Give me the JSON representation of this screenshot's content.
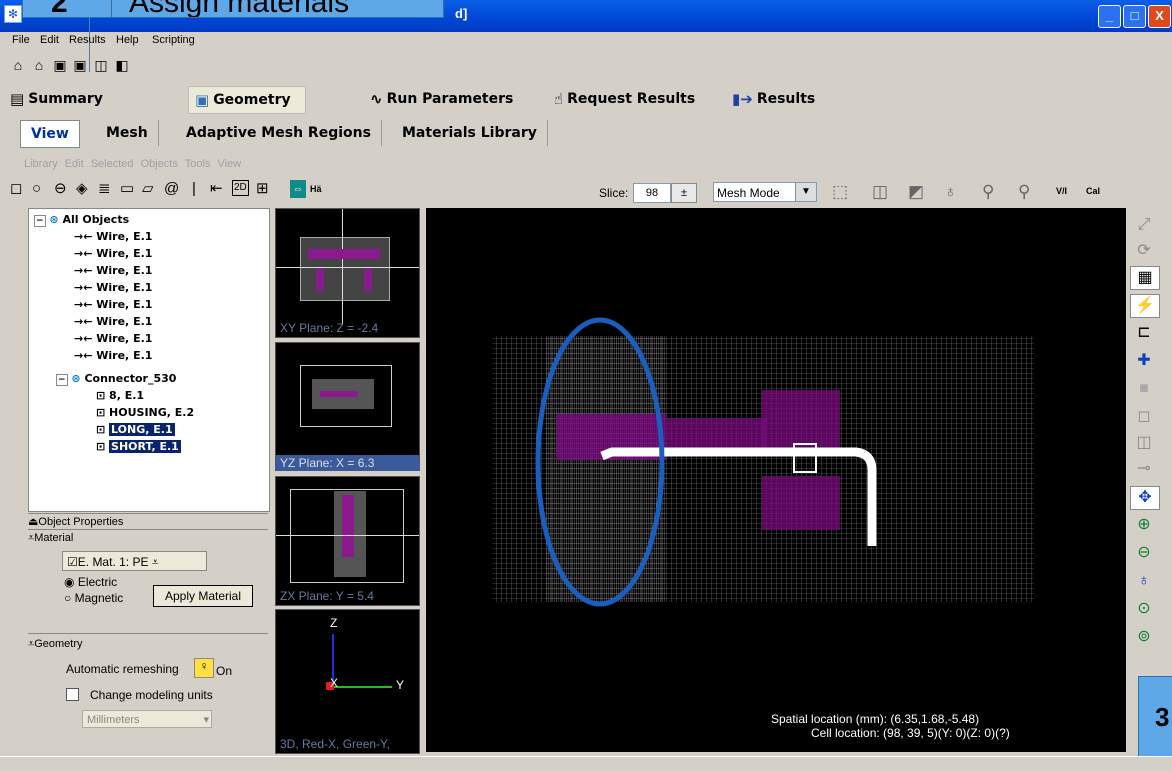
{
  "window": {
    "title": "d]",
    "callout_step": "2",
    "callout_text": "Assign materials",
    "callout_step_right": "3",
    "buttons": {
      "minimize": "_",
      "maximize": "□",
      "close": "X"
    }
  },
  "menu": [
    "File",
    "Edit",
    "Results",
    "Help",
    "Scripting"
  ],
  "main_tabs": [
    {
      "label": "Summary",
      "icon": "summary-icon"
    },
    {
      "label": "Geometry",
      "icon": "geometry-icon"
    },
    {
      "label": "Run Parameters",
      "icon": "run-parameters-icon"
    },
    {
      "label": "Request Results",
      "icon": "request-results-icon"
    },
    {
      "label": "Results",
      "icon": "results-icon"
    }
  ],
  "sub_tabs": [
    "View",
    "Mesh",
    "Adaptive Mesh Regions",
    "Materials Library"
  ],
  "sub_menu": "Library  Edit  Selected Objects  Tools  View",
  "toolbar": {
    "slice_label": "Slice:",
    "slice_value": "98",
    "mode": "Mesh Mode",
    "vi_label": "V/I",
    "cal_label": "Cal",
    "ha_label": "Hä"
  },
  "tree": {
    "root": "All Objects",
    "wires": [
      "Wire, E.1",
      "Wire, E.1",
      "Wire, E.1",
      "Wire, E.1",
      "Wire, E.1",
      "Wire, E.1",
      "Wire, E.1",
      "Wire, E.1"
    ],
    "connector": "Connector_530",
    "parts": [
      "8, E.1",
      "HOUSING, E.2",
      "LONG, E.1",
      "SHORT, E.1"
    ],
    "selected_parts": [
      "LONG, E.1",
      "SHORT, E.1"
    ]
  },
  "properties": {
    "header": "Object Properties",
    "material_header": "Material",
    "material_value": "E. Mat. 1: PE",
    "electric": "Electric",
    "magnetic": "Magnetic",
    "apply_button": "Apply Material",
    "geometry_header": "Geometry",
    "auto_remesh_label": "Automatic remeshing",
    "auto_remesh_value": "On",
    "change_units_label": "Change modeling units",
    "units_value": "Millimeters"
  },
  "thumbnails": [
    {
      "label": "XY Plane: Z = -2.4"
    },
    {
      "label": "YZ Plane: X = 6.3"
    },
    {
      "label": "ZX Plane: Y = 5.4"
    },
    {
      "label": "3D, Red-X, Green-Y,"
    }
  ],
  "axes": {
    "z": "Z",
    "x": "X",
    "y": "Y"
  },
  "readout": {
    "spatial": "Spatial location (mm): (6.35,1.68,-5.48)",
    "cell": "Cell location: (98, 39, 5)(Y: 0)(Z: 0)(?)"
  },
  "colors": {
    "titlebar": "#0a5fe6",
    "callout": "#5fa8e8",
    "mesh": "#9a9a9a",
    "housing": "#7a0a80",
    "annotation_ellipse": "#1a5fc0"
  }
}
